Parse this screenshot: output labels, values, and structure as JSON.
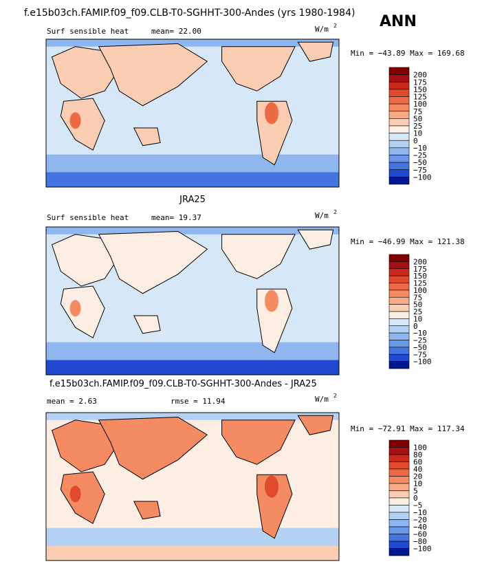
{
  "header": {
    "title": "f.e15b03ch.FAMIP.f09_f09.CLB-T0-SGHHT-300-Andes (yrs 1980-1984)",
    "season": "ANN"
  },
  "panels": [
    {
      "title": null,
      "left": "Surf sensible heat",
      "center": "mean=  22.00",
      "units": {
        "base": "W/m",
        "sup": "2"
      },
      "minmax": "Min = −43.89 Max = 169.68",
      "levels": [
        "200",
        "175",
        "150",
        "125",
        "100",
        "75",
        "50",
        "25",
        "10",
        "0",
        "−10",
        "−25",
        "−50",
        "−75",
        "−100"
      ],
      "colors": [
        "#800000",
        "#a50f15",
        "#cb2a1a",
        "#e04a2c",
        "#ee6a44",
        "#f48b62",
        "#f8ab86",
        "#fbcdb2",
        "#fdeee4",
        "#d6e7f8",
        "#b5d1f3",
        "#8fb6ee",
        "#6a96e8",
        "#4474e0",
        "#2049cf",
        "#00188f"
      ]
    },
    {
      "title": "JRA25",
      "left": "Surf sensible heat",
      "center": "mean=  19.37",
      "units": {
        "base": "W/m",
        "sup": "2"
      },
      "minmax": "Min = −46.99 Max = 121.38",
      "levels": [
        "200",
        "175",
        "150",
        "125",
        "100",
        "75",
        "50",
        "25",
        "10",
        "0",
        "−10",
        "−25",
        "−50",
        "−75",
        "−100"
      ],
      "colors": [
        "#800000",
        "#a50f15",
        "#cb2a1a",
        "#e04a2c",
        "#ee6a44",
        "#f48b62",
        "#f8ab86",
        "#fbcdb2",
        "#fdeee4",
        "#d6e7f8",
        "#b5d1f3",
        "#8fb6ee",
        "#6a96e8",
        "#4474e0",
        "#2049cf",
        "#00188f"
      ]
    },
    {
      "title": "f.e15b03ch.FAMIP.f09_f09.CLB-T0-SGHHT-300-Andes - JRA25",
      "left": "mean =    2.63",
      "center": "rmse =   11.94",
      "units": {
        "base": "W/m",
        "sup": "2"
      },
      "minmax": "Min = −72.91 Max = 117.34",
      "levels": [
        "100",
        "80",
        "60",
        "40",
        "20",
        "10",
        "5",
        "0",
        "−5",
        "−10",
        "−20",
        "−40",
        "−60",
        "−80",
        "−100"
      ],
      "colors": [
        "#800000",
        "#a50f15",
        "#cb2a1a",
        "#e04a2c",
        "#ee6a44",
        "#f48b62",
        "#f8ab86",
        "#fbcdb2",
        "#fdeee4",
        "#d6e7f8",
        "#b5d1f3",
        "#8fb6ee",
        "#6a96e8",
        "#4474e0",
        "#2049cf",
        "#00188f"
      ]
    }
  ]
}
